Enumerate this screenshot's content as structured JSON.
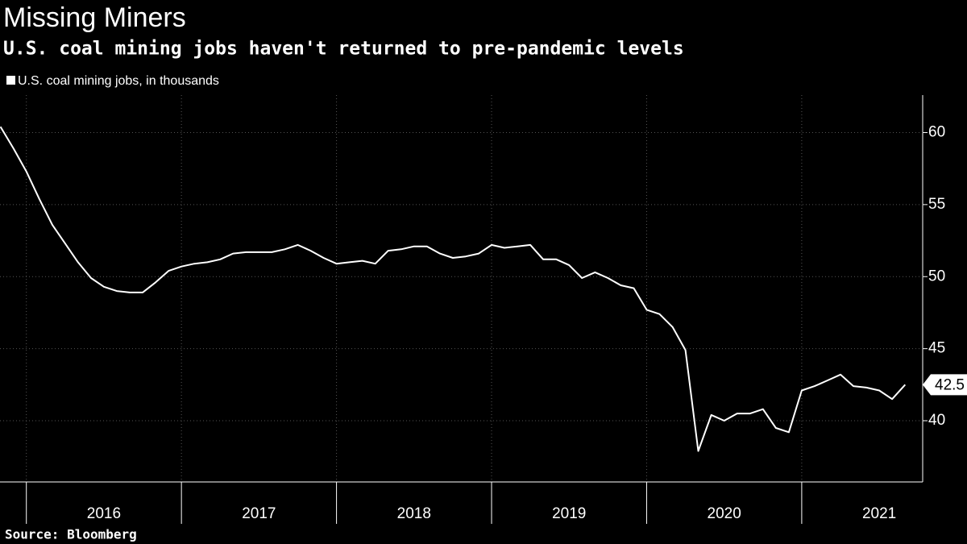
{
  "chart_data": {
    "type": "line",
    "title": "Missing Miners",
    "subtitle": "U.S. coal mining jobs haven't returned to pre-pandemic levels",
    "source": "Source: Bloomberg",
    "x": [
      2015.833,
      2015.917,
      2016.0,
      2016.083,
      2016.167,
      2016.25,
      2016.333,
      2016.417,
      2016.5,
      2016.583,
      2016.667,
      2016.75,
      2016.833,
      2016.917,
      2017.0,
      2017.083,
      2017.167,
      2017.25,
      2017.333,
      2017.417,
      2017.5,
      2017.583,
      2017.667,
      2017.75,
      2017.833,
      2017.917,
      2018.0,
      2018.083,
      2018.167,
      2018.25,
      2018.333,
      2018.417,
      2018.5,
      2018.583,
      2018.667,
      2018.75,
      2018.833,
      2018.917,
      2019.0,
      2019.083,
      2019.167,
      2019.25,
      2019.333,
      2019.417,
      2019.5,
      2019.583,
      2019.667,
      2019.75,
      2019.833,
      2019.917,
      2020.0,
      2020.083,
      2020.167,
      2020.25,
      2020.333,
      2020.417,
      2020.5,
      2020.583,
      2020.667,
      2020.75,
      2020.833,
      2020.917,
      2021.0,
      2021.083,
      2021.167,
      2021.25,
      2021.333,
      2021.417,
      2021.5,
      2021.583,
      2021.667
    ],
    "series": [
      {
        "name": "U.S. coal mining jobs, in thousands",
        "color": "#ffffff",
        "values": [
          60.4,
          58.9,
          57.3,
          55.4,
          53.6,
          52.3,
          51.0,
          49.9,
          49.3,
          49.0,
          48.9,
          48.9,
          49.6,
          50.4,
          50.7,
          50.9,
          51.0,
          51.2,
          51.6,
          51.7,
          51.7,
          51.7,
          51.9,
          52.2,
          51.8,
          51.3,
          50.9,
          51.0,
          51.1,
          50.9,
          51.8,
          51.9,
          52.1,
          52.1,
          51.6,
          51.3,
          51.4,
          51.6,
          52.2,
          52.0,
          52.1,
          52.2,
          51.2,
          51.2,
          50.8,
          49.9,
          50.3,
          49.9,
          49.4,
          49.2,
          47.7,
          47.4,
          46.5,
          44.9,
          37.9,
          40.4,
          40.0,
          40.5,
          40.5,
          40.8,
          39.5,
          39.2,
          42.1,
          42.4,
          42.8,
          43.2,
          42.4,
          42.3,
          42.1,
          41.5,
          42.5
        ]
      }
    ],
    "xlim": [
      2015.83,
      2021.78
    ],
    "xticks": [
      {
        "value": 2016,
        "label": "2016"
      },
      {
        "value": 2017,
        "label": "2017"
      },
      {
        "value": 2018,
        "label": "2018"
      },
      {
        "value": 2019,
        "label": "2019"
      },
      {
        "value": 2020,
        "label": "2020"
      },
      {
        "value": 2021,
        "label": "2021"
      }
    ],
    "ylim": [
      35.75,
      62.6
    ],
    "yticks": [
      40,
      45,
      50,
      55,
      60
    ],
    "grid": true
  }
}
